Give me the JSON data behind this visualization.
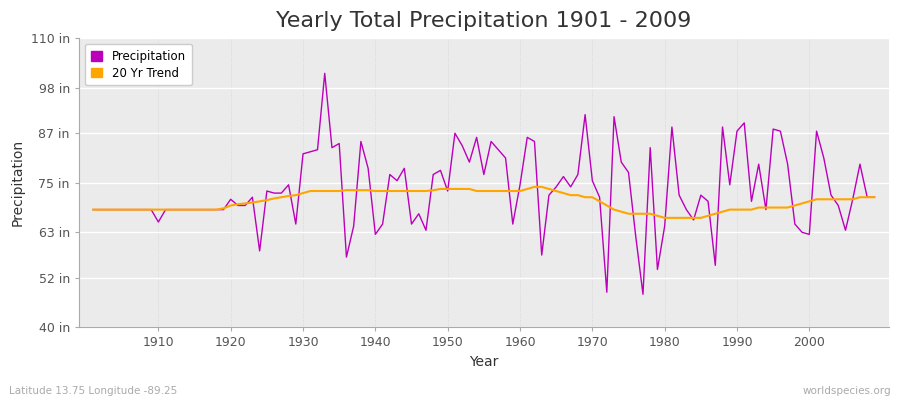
{
  "title": "Yearly Total Precipitation 1901 - 2009",
  "xlabel": "Year",
  "ylabel": "Precipitation",
  "bottom_left_label": "Latitude 13.75 Longitude -89.25",
  "bottom_right_label": "worldspecies.org",
  "years": [
    1901,
    1902,
    1903,
    1904,
    1905,
    1906,
    1907,
    1908,
    1909,
    1910,
    1911,
    1912,
    1913,
    1914,
    1915,
    1916,
    1917,
    1918,
    1919,
    1920,
    1921,
    1922,
    1923,
    1924,
    1925,
    1926,
    1927,
    1928,
    1929,
    1930,
    1931,
    1932,
    1933,
    1934,
    1935,
    1936,
    1937,
    1938,
    1939,
    1940,
    1941,
    1942,
    1943,
    1944,
    1945,
    1946,
    1947,
    1948,
    1949,
    1950,
    1951,
    1952,
    1953,
    1954,
    1955,
    1956,
    1957,
    1958,
    1959,
    1960,
    1961,
    1962,
    1963,
    1964,
    1965,
    1966,
    1967,
    1968,
    1969,
    1970,
    1971,
    1972,
    1973,
    1974,
    1975,
    1976,
    1977,
    1978,
    1979,
    1980,
    1981,
    1982,
    1983,
    1984,
    1985,
    1986,
    1987,
    1988,
    1989,
    1990,
    1991,
    1992,
    1993,
    1994,
    1995,
    1996,
    1997,
    1998,
    1999,
    2000,
    2001,
    2002,
    2003,
    2004,
    2005,
    2006,
    2007,
    2008,
    2009
  ],
  "precip": [
    68.5,
    68.5,
    68.5,
    68.5,
    68.5,
    68.5,
    68.5,
    68.5,
    68.5,
    65.5,
    68.5,
    68.5,
    68.5,
    68.5,
    68.5,
    68.5,
    68.5,
    68.5,
    68.5,
    71.0,
    69.5,
    69.5,
    71.5,
    58.5,
    73.0,
    72.5,
    72.5,
    74.5,
    65.0,
    82.0,
    82.5,
    83.0,
    101.5,
    83.5,
    84.5,
    57.0,
    64.5,
    85.0,
    78.5,
    62.5,
    65.0,
    77.0,
    75.5,
    78.5,
    65.0,
    67.5,
    63.5,
    77.0,
    78.0,
    73.0,
    87.0,
    84.0,
    80.0,
    86.0,
    77.0,
    85.0,
    83.0,
    81.0,
    65.0,
    74.5,
    86.0,
    85.0,
    57.5,
    72.0,
    74.0,
    76.5,
    74.0,
    77.0,
    91.5,
    75.5,
    71.5,
    48.5,
    91.0,
    80.0,
    77.5,
    62.0,
    48.0,
    83.5,
    54.0,
    64.5,
    88.5,
    72.0,
    68.5,
    66.0,
    72.0,
    70.5,
    55.0,
    88.5,
    74.5,
    87.5,
    89.5,
    70.5,
    79.5,
    68.5,
    88.0,
    87.5,
    79.5,
    65.0,
    63.0,
    62.5,
    87.5,
    81.0,
    72.0,
    69.5,
    63.5,
    71.0,
    79.5,
    71.5,
    71.5
  ],
  "trend": [
    68.5,
    68.5,
    68.5,
    68.5,
    68.5,
    68.5,
    68.5,
    68.5,
    68.5,
    68.5,
    68.5,
    68.5,
    68.5,
    68.5,
    68.5,
    68.5,
    68.5,
    68.5,
    68.8,
    69.5,
    69.8,
    70.0,
    70.2,
    70.5,
    70.8,
    71.2,
    71.5,
    71.8,
    72.0,
    72.5,
    73.0,
    73.0,
    73.0,
    73.0,
    73.0,
    73.2,
    73.2,
    73.2,
    73.2,
    73.0,
    73.0,
    73.0,
    73.0,
    73.0,
    73.0,
    73.0,
    73.0,
    73.2,
    73.5,
    73.5,
    73.5,
    73.5,
    73.5,
    73.0,
    73.0,
    73.0,
    73.0,
    73.0,
    73.0,
    73.0,
    73.5,
    74.0,
    74.0,
    73.5,
    73.0,
    72.5,
    72.0,
    72.0,
    71.5,
    71.5,
    70.5,
    69.5,
    68.5,
    68.0,
    67.5,
    67.5,
    67.5,
    67.5,
    67.0,
    66.5,
    66.5,
    66.5,
    66.5,
    66.5,
    66.5,
    67.0,
    67.5,
    68.0,
    68.5,
    68.5,
    68.5,
    68.5,
    69.0,
    69.0,
    69.0,
    69.0,
    69.0,
    69.5,
    70.0,
    70.5,
    71.0,
    71.0,
    71.0,
    71.0,
    71.0,
    71.0,
    71.5,
    71.5,
    71.5
  ],
  "precip_color": "#bb00bb",
  "trend_color": "#ffa500",
  "figure_bg_color": "#ffffff",
  "plot_bg_color": "#ebebeb",
  "grid_color_h": "#ffffff",
  "grid_color_v": "#d0d0d8",
  "ylim": [
    40,
    110
  ],
  "yticks": [
    40,
    52,
    63,
    75,
    87,
    98,
    110
  ],
  "ytick_labels": [
    "40 in",
    "52 in",
    "63 in",
    "75 in",
    "87 in",
    "98 in",
    "110 in"
  ],
  "title_fontsize": 16,
  "axis_label_fontsize": 10,
  "tick_fontsize": 9,
  "legend_labels": [
    "Precipitation",
    "20 Yr Trend"
  ]
}
